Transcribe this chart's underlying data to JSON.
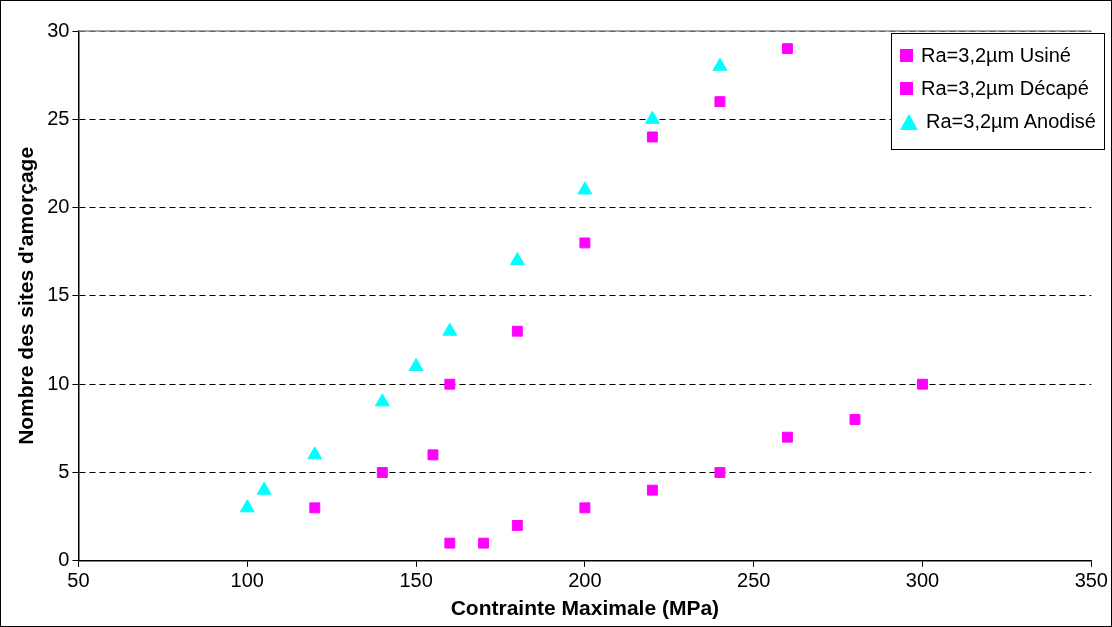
{
  "chart_data": {
    "type": "scatter",
    "xlabel": "Contrainte Maximale (MPa)",
    "ylabel": "Nombre des sites d'amorçage",
    "xlim": [
      50,
      350
    ],
    "xticks": [
      50,
      100,
      150,
      200,
      250,
      300,
      350
    ],
    "ylim": [
      0,
      30
    ],
    "yticks": [
      0,
      5,
      10,
      15,
      20,
      25,
      30
    ],
    "grid": "y",
    "line_style": "dashed",
    "legend": "top right",
    "series": [
      {
        "name": "Ra=3,2µm Usiné",
        "color": "#ff00ff",
        "marker": "square",
        "x": [
          160,
          170,
          180,
          200,
          220,
          240,
          260,
          280,
          300
        ],
        "values": [
          1,
          1,
          2,
          3,
          4,
          5,
          7,
          8,
          10
        ]
      },
      {
        "name": "Ra=3,2µm Décapé",
        "color": "#ff00ff",
        "marker": "square",
        "x": [
          120,
          140,
          155,
          160,
          180,
          200,
          220,
          240,
          260
        ],
        "values": [
          3,
          5,
          6,
          10,
          13,
          18,
          24,
          26,
          29
        ]
      },
      {
        "name": "Ra=3,2µm Anodisé",
        "color": "#00ffff",
        "marker": "triangle",
        "x": [
          100,
          105,
          120,
          140,
          150,
          160,
          180,
          200,
          220,
          240
        ],
        "values": [
          3,
          4,
          6,
          9,
          11,
          13,
          17,
          21,
          25,
          28
        ]
      }
    ]
  }
}
